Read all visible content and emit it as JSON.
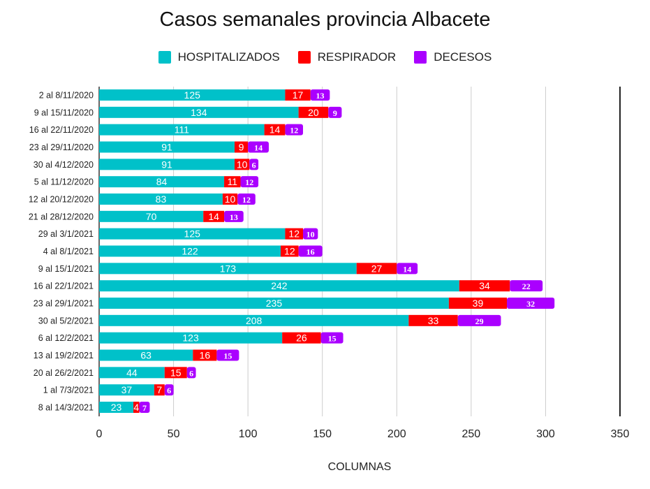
{
  "chart_data": {
    "type": "bar",
    "orientation": "horizontal",
    "stacked": true,
    "title": "Casos semanales provincia Albacete",
    "xlabel": "COLUMNAS",
    "ylabel": "",
    "xlim": [
      0,
      350
    ],
    "xticks": [
      0,
      50,
      100,
      150,
      200,
      250,
      300,
      350
    ],
    "grid": true,
    "legend_position": "top",
    "categories": [
      "2 al 8/11/2020",
      "9 al 15/11/2020",
      "16 al 22/11/2020",
      "23 al 29/11/2020",
      "30 al 4/12/2020",
      "5 al 11/12/2020",
      "12 al 20/12/2020",
      "21 al 28/12/2020",
      "29 al 3/1/2021",
      "4 al 8/1/2021",
      "9 al 15/1/2021",
      "16 al 22/1/2021",
      "23 al 29/1/2021",
      "30 al 5/2/2021",
      "6 al 12/2/2021",
      "13 al 19/2/2021",
      "20 al 26/2/2021",
      "1 al 7/3/2021",
      "8 al 14/3/2021"
    ],
    "series": [
      {
        "name": "HOSPITALIZADOS",
        "color": "#00c1c9",
        "values": [
          125,
          134,
          111,
          91,
          91,
          84,
          83,
          70,
          125,
          122,
          173,
          242,
          235,
          208,
          123,
          63,
          44,
          37,
          23
        ]
      },
      {
        "name": "RESPIRADOR",
        "color": "#ff0000",
        "values": [
          17,
          20,
          14,
          9,
          10,
          11,
          10,
          14,
          12,
          12,
          27,
          34,
          39,
          33,
          26,
          16,
          15,
          7,
          4
        ]
      },
      {
        "name": "DECESOS",
        "color": "#aa00ff",
        "values": [
          13,
          9,
          12,
          14,
          6,
          12,
          12,
          13,
          10,
          16,
          14,
          22,
          32,
          29,
          15,
          15,
          6,
          6,
          7
        ]
      }
    ]
  }
}
